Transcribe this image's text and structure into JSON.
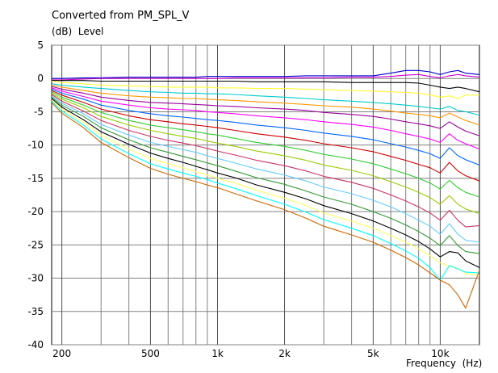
{
  "chart_data": {
    "type": "line",
    "title": "Converted from PM_SPL_V",
    "ylabel": "(dB)  Level",
    "xlabel": "Frequency  (Hz)",
    "x_scale": "log",
    "xlim": [
      180,
      15000
    ],
    "ylim": [
      -40,
      5
    ],
    "grid": true,
    "y_ticks": [
      5,
      0,
      -5,
      -10,
      -15,
      -20,
      -25,
      -30,
      -35,
      -40
    ],
    "y_tick_labels": [
      "5",
      "0",
      "-5",
      "-10",
      "-15",
      "-20",
      "-25",
      "-30",
      "-35",
      "-40"
    ],
    "x_major_ticks": [
      200,
      500,
      1000,
      2000,
      5000,
      10000
    ],
    "x_tick_labels": [
      "200",
      "500",
      "1k",
      "2k",
      "5k",
      "10k"
    ],
    "x_minor_ticks": [
      300,
      400,
      600,
      700,
      800,
      900,
      3000,
      4000,
      6000,
      7000,
      8000,
      9000
    ],
    "x": [
      180,
      200,
      250,
      300,
      400,
      500,
      600,
      700,
      800,
      900,
      1000,
      1200,
      1500,
      2000,
      2500,
      3000,
      4000,
      5000,
      6000,
      7000,
      8000,
      9000,
      10000,
      11000,
      12000,
      13000,
      15000
    ],
    "series": [
      {
        "color": "#0000cc",
        "values": [
          0,
          0,
          0.1,
          0.1,
          0.2,
          0.2,
          0.2,
          0.2,
          0.2,
          0.3,
          0.3,
          0.3,
          0.3,
          0.3,
          0.4,
          0.4,
          0.4,
          0.4,
          0.8,
          1.2,
          1.2,
          1,
          0.6,
          1.0,
          1.2,
          0.8,
          0.6
        ]
      },
      {
        "color": "#cc00cc",
        "values": [
          -0.2,
          -0.2,
          -0.1,
          0,
          0,
          0,
          0,
          0,
          0,
          0,
          0,
          0.1,
          0.1,
          0.1,
          0.1,
          0.1,
          0.2,
          0.2,
          0.3,
          0.5,
          0.6,
          0.3,
          0.1,
          0.4,
          0.6,
          0.4,
          0.2
        ]
      },
      {
        "color": "#000000",
        "values": [
          -0.3,
          -0.3,
          -0.3,
          -0.4,
          -0.4,
          -0.4,
          -0.4,
          -0.4,
          -0.4,
          -0.4,
          -0.4,
          -0.4,
          -0.5,
          -0.5,
          -0.5,
          -0.5,
          -0.6,
          -0.6,
          -0.6,
          -0.6,
          -0.7,
          -1,
          -1.3,
          -1.5,
          -1.3,
          -1.5,
          -2
        ]
      },
      {
        "color": "#ffff33",
        "values": [
          -0.4,
          -0.6,
          -0.8,
          -1,
          -1.1,
          -1.2,
          -1.3,
          -1.3,
          -1.3,
          -1.3,
          -1.4,
          -1.4,
          -1.5,
          -1.5,
          -1.6,
          -1.7,
          -1.8,
          -1.9,
          -2,
          -2.1,
          -2.2,
          -2.5,
          -2.8,
          -2.6,
          -3,
          -2.5,
          -2.5
        ]
      },
      {
        "color": "#00cccc",
        "values": [
          -0.8,
          -1,
          -1.3,
          -1.5,
          -1.8,
          -2,
          -2.1,
          -2.2,
          -2.2,
          -2.3,
          -2.3,
          -2.4,
          -2.6,
          -2.8,
          -3,
          -3.2,
          -3.4,
          -3.6,
          -3.8,
          -4,
          -4.2,
          -4.4,
          -4.6,
          -4.2,
          -4.8,
          -5,
          -5.5
        ]
      },
      {
        "color": "#ff9900",
        "values": [
          -1,
          -1.3,
          -1.8,
          -2.2,
          -2.6,
          -2.8,
          -2.9,
          -3,
          -3,
          -3.1,
          -3.2,
          -3.3,
          -3.5,
          -3.7,
          -3.9,
          -4.1,
          -4.3,
          -4.6,
          -4.9,
          -5.2,
          -5.4,
          -5.6,
          -5.9,
          -5.2,
          -5.8,
          -6.3,
          -7
        ]
      },
      {
        "color": "#990099",
        "values": [
          -1.2,
          -1.6,
          -2.2,
          -2.8,
          -3.3,
          -3.6,
          -3.7,
          -3.8,
          -3.9,
          -4,
          -4.1,
          -4.2,
          -4.4,
          -4.6,
          -4.8,
          -5.1,
          -5.4,
          -5.7,
          -6.1,
          -6.5,
          -6.8,
          -7.1,
          -7.5,
          -6.5,
          -7.3,
          -7.9,
          -8.6
        ]
      },
      {
        "color": "#ff00ff",
        "values": [
          -1.4,
          -1.9,
          -2.7,
          -3.4,
          -4,
          -4.4,
          -4.6,
          -4.7,
          -4.8,
          -5,
          -5.1,
          -5.3,
          -5.6,
          -5.9,
          -6.2,
          -6.5,
          -6.9,
          -7.3,
          -7.8,
          -8.3,
          -8.7,
          -9.1,
          -9.6,
          -8.3,
          -9.3,
          -9.8,
          -10.6
        ]
      },
      {
        "color": "#0066ff",
        "values": [
          -1.6,
          -2.2,
          -3.1,
          -4,
          -4.8,
          -5.3,
          -5.6,
          -5.8,
          -6,
          -6.2,
          -6.3,
          -6.6,
          -7,
          -7.4,
          -7.8,
          -8.2,
          -8.7,
          -9.2,
          -9.8,
          -10.3,
          -10.8,
          -11.3,
          -12,
          -10.4,
          -11.6,
          -12.2,
          -13
        ]
      },
      {
        "color": "#cc0000",
        "values": [
          -1.8,
          -2.5,
          -3.6,
          -4.6,
          -5.6,
          -6.2,
          -6.5,
          -6.8,
          -7,
          -7.2,
          -7.4,
          -7.8,
          -8.3,
          -8.8,
          -9.3,
          -9.8,
          -10.4,
          -11,
          -11.7,
          -12.3,
          -12.9,
          -13.4,
          -14.2,
          -12.6,
          -13.9,
          -14.6,
          -15.4
        ]
      },
      {
        "color": "#33cc33",
        "values": [
          -2,
          -2.8,
          -4,
          -5.1,
          -6.3,
          -7,
          -7.4,
          -7.7,
          -8,
          -8.3,
          -8.5,
          -9,
          -9.6,
          -10.2,
          -10.8,
          -11.4,
          -12.1,
          -12.8,
          -13.6,
          -14.3,
          -15,
          -15.7,
          -16.6,
          -15.3,
          -16.4,
          -17.1,
          -17.8
        ]
      },
      {
        "color": "#99cc00",
        "values": [
          -2.2,
          -3.1,
          -4.4,
          -5.7,
          -7,
          -7.8,
          -8.3,
          -8.7,
          -9,
          -9.4,
          -9.7,
          -10.2,
          -10.9,
          -11.6,
          -12.3,
          -13,
          -13.8,
          -14.6,
          -15.5,
          -16.3,
          -17.1,
          -17.9,
          -18.9,
          -17.6,
          -18.9,
          -19.6,
          -20.3
        ]
      },
      {
        "color": "#cc3366",
        "values": [
          -2.4,
          -3.4,
          -4.9,
          -6.3,
          -7.8,
          -8.7,
          -9.3,
          -9.7,
          -10.1,
          -10.5,
          -10.9,
          -11.5,
          -12.3,
          -13.1,
          -13.9,
          -14.7,
          -15.6,
          -16.5,
          -17.5,
          -18.4,
          -19.3,
          -20.2,
          -21.3,
          -19.8,
          -21.3,
          -22.3,
          -22.1
        ]
      },
      {
        "color": "#66ccff",
        "values": [
          -2.6,
          -3.7,
          -5.3,
          -6.9,
          -8.5,
          -9.6,
          -10.2,
          -10.7,
          -11.1,
          -11.6,
          -12,
          -12.7,
          -13.6,
          -14.5,
          -15.4,
          -16.3,
          -17.3,
          -18.3,
          -19.3,
          -20.3,
          -21.3,
          -22.2,
          -23.4,
          -21.8,
          -23.4,
          -24.3,
          -24.6
        ]
      },
      {
        "color": "#339933",
        "values": [
          -2.8,
          -4,
          -5.7,
          -7.4,
          -9.2,
          -10.4,
          -11.1,
          -11.7,
          -12.2,
          -12.7,
          -13.1,
          -13.9,
          -14.9,
          -15.9,
          -16.9,
          -17.8,
          -18.9,
          -20,
          -21,
          -22,
          -23,
          -24,
          -25.1,
          -23.6,
          -25.1,
          -26,
          -26.3
        ]
      },
      {
        "color": "#000000",
        "values": [
          -3,
          -4.3,
          -6.2,
          -8,
          -9.9,
          -11.2,
          -12,
          -12.6,
          -13.2,
          -13.7,
          -14.2,
          -14.9,
          -16,
          -17.1,
          -18.1,
          -19.1,
          -20.3,
          -21.4,
          -22.5,
          -23.5,
          -24.5,
          -25.6,
          -26.8,
          -26,
          -26.2,
          -27.4,
          -28.4
        ]
      },
      {
        "color": "#ffff66",
        "values": [
          -3.2,
          -4.6,
          -6.6,
          -8.5,
          -10.6,
          -12,
          -12.8,
          -13.4,
          -14,
          -14.5,
          -15,
          -15.7,
          -16.8,
          -18,
          -19.1,
          -20.2,
          -21.4,
          -22.5,
          -23.6,
          -24.6,
          -25.6,
          -26.6,
          -27.7,
          -28.2,
          -28.5,
          -29.3,
          -29.6
        ]
      },
      {
        "color": "#00ffff",
        "values": [
          -3.4,
          -4.9,
          -7,
          -9.1,
          -11.3,
          -12.8,
          -13.6,
          -14.2,
          -14.7,
          -15.2,
          -15.7,
          -16.5,
          -17.6,
          -18.9,
          -20.1,
          -21.2,
          -22.5,
          -23.6,
          -24.8,
          -25.9,
          -27,
          -28.4,
          -30.3,
          -28.1,
          -28.6,
          -29.1,
          -29.2
        ]
      },
      {
        "color": "#cc6600",
        "values": [
          -3.6,
          -5.2,
          -7.4,
          -9.6,
          -11.9,
          -13.5,
          -14.4,
          -15,
          -15.5,
          -16,
          -16.4,
          -17.3,
          -18.4,
          -19.7,
          -21,
          -22.2,
          -23.5,
          -24.6,
          -25.8,
          -26.9,
          -28,
          -29.2,
          -30.3,
          -31,
          -32.5,
          -34.5,
          -28.8
        ]
      }
    ]
  }
}
